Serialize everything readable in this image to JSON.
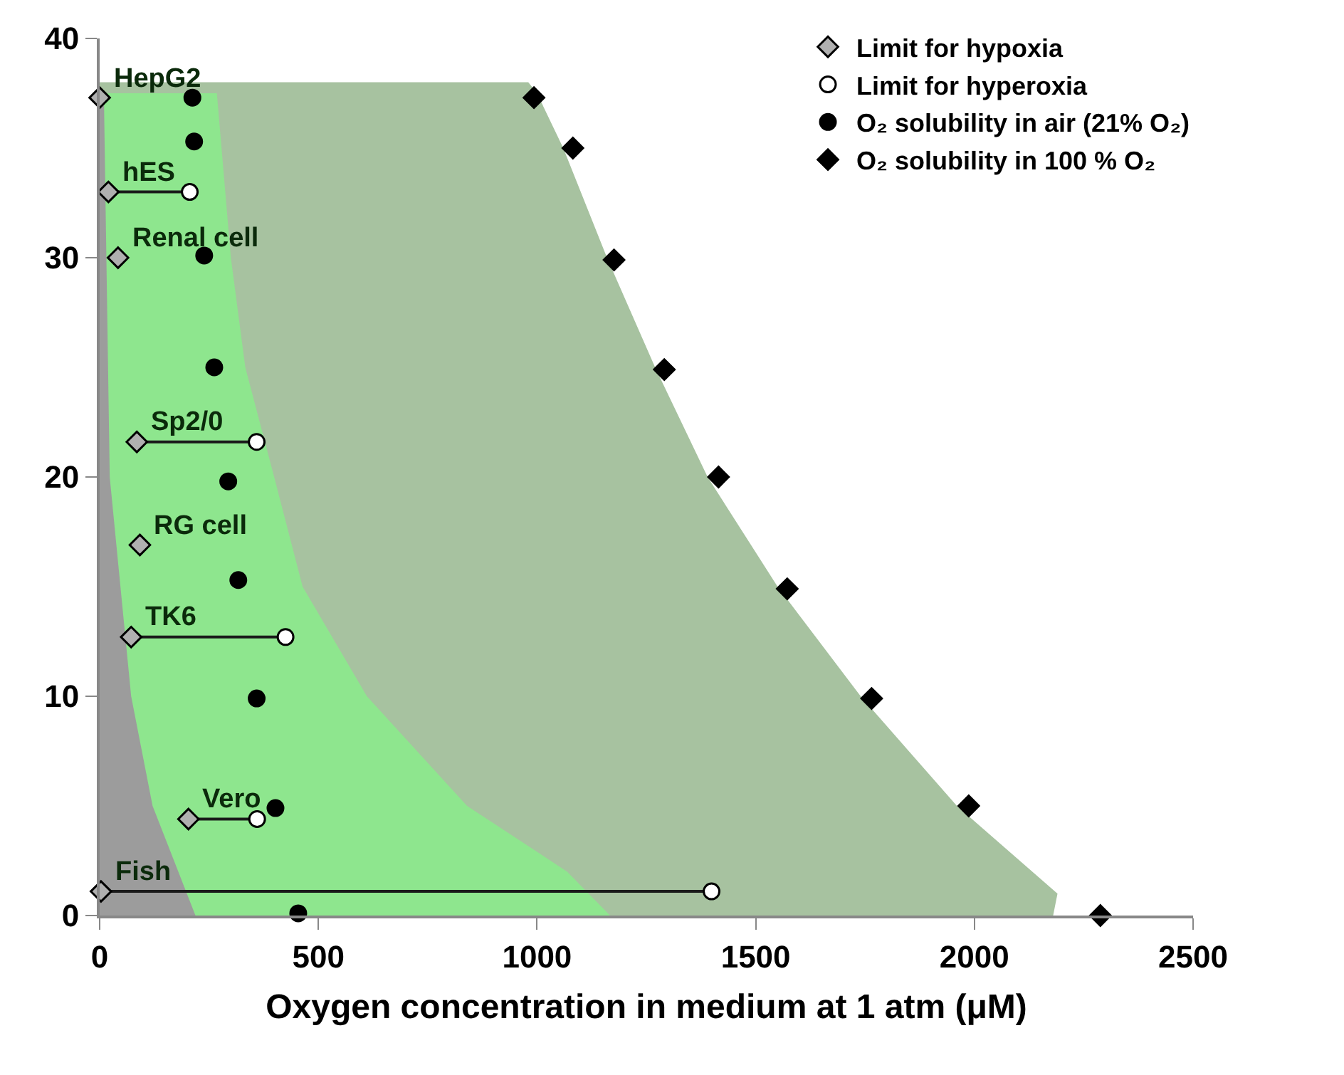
{
  "chart_data": {
    "type": "scatter",
    "xlabel": "Oxygen concentration in medium at 1 atm (μM)",
    "xlim": [
      0,
      2500
    ],
    "xticks": [
      0,
      500,
      1000,
      1500,
      2000,
      2500
    ],
    "ylim": [
      0,
      40
    ],
    "yticks": [
      0,
      10,
      20,
      30,
      40
    ],
    "legend": "top right",
    "series": [
      {
        "type": "area",
        "color": "#a7c2a0",
        "x": [
          0,
          980,
          1000,
          1060,
          1160,
          1270,
          1390,
          1550,
          1740,
          1960,
          2190,
          2180
        ],
        "values": [
          38,
          38,
          37.5,
          35,
          30,
          25,
          20,
          15,
          10,
          5,
          1,
          0
        ]
      },
      {
        "type": "area",
        "color": "#8ee68e",
        "x": [
          0,
          268,
          300,
          333,
          399,
          464,
          611,
          840,
          1069,
          1167
        ],
        "values": [
          37.5,
          37.5,
          30,
          25,
          20,
          15,
          10,
          5,
          2,
          0
        ]
      },
      {
        "type": "area",
        "color": "#9c9c9c",
        "x": [
          0,
          10,
          23,
          72,
          121,
          219
        ],
        "values": [
          37,
          37,
          20,
          10,
          5,
          0
        ]
      },
      {
        "type": "line",
        "color": "#1a1a1a",
        "x": [
          20,
          206,
          null,
          85,
          359,
          null,
          72,
          425,
          null,
          203,
          360,
          null,
          3,
          1399
        ],
        "values": [
          33,
          33,
          null,
          21.6,
          21.6,
          null,
          12.7,
          12.7,
          null,
          4.4,
          4.4,
          null,
          1.1,
          1.1
        ]
      },
      {
        "name": "Limit for hypoxia",
        "marker": "diamond",
        "color": "#b0b0b0",
        "x": [
          0,
          20,
          42,
          85,
          92,
          72,
          203,
          3
        ],
        "values": [
          37.3,
          33,
          30,
          21.6,
          16.9,
          12.7,
          4.4,
          1.1
        ]
      },
      {
        "name": "Limit for hyperoxia",
        "marker": "circle",
        "color": "#ffffff",
        "x": [
          206,
          359,
          425,
          360,
          1399
        ],
        "values": [
          33,
          21.6,
          12.7,
          4.4,
          1.1
        ]
      },
      {
        "name": "O₂ solubility in air (21% O₂)",
        "marker": "circle",
        "color": "#000000",
        "x": [
          212,
          216,
          239,
          262,
          294,
          317,
          359,
          402,
          454
        ],
        "values": [
          37.3,
          35.3,
          30.1,
          25,
          19.8,
          15.3,
          9.9,
          4.9,
          0.1
        ]
      },
      {
        "name": "O₂ solubility in 100 % O₂",
        "marker": "diamond",
        "color": "#000000",
        "x": [
          993,
          1082,
          1176,
          1291,
          1415,
          1572,
          1765,
          1987,
          2288
        ],
        "values": [
          37.3,
          35,
          29.9,
          24.9,
          20,
          14.9,
          9.9,
          5,
          0
        ]
      }
    ],
    "annotations": [
      {
        "text": "HepG2",
        "x": 0,
        "y": 37.3
      },
      {
        "text": "hES",
        "x": 20,
        "y": 33
      },
      {
        "text": "Renal cell",
        "x": 42,
        "y": 30
      },
      {
        "text": "Sp2/0",
        "x": 85,
        "y": 21.6
      },
      {
        "text": "RG cell",
        "x": 92,
        "y": 16.9
      },
      {
        "text": "TK6",
        "x": 72,
        "y": 12.7
      },
      {
        "text": "Vero",
        "x": 203,
        "y": 4.4
      },
      {
        "text": "Fish",
        "x": 3,
        "y": 1.1
      }
    ]
  }
}
